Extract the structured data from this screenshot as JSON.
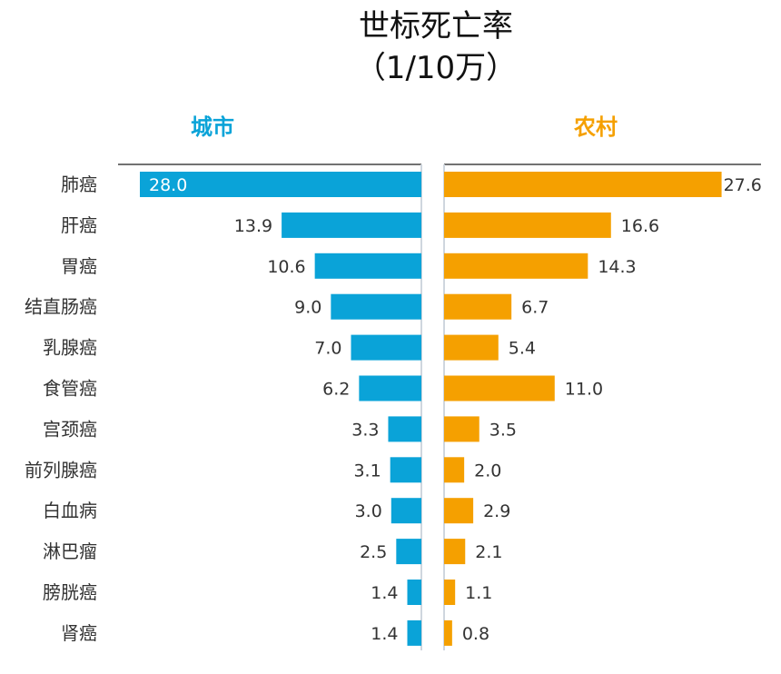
{
  "chart_data": {
    "type": "bar",
    "title_line1": "世标死亡率",
    "title_line2": "（1/10万）",
    "categories": [
      "肺癌",
      "肝癌",
      "胃癌",
      "结直肠癌",
      "乳腺癌",
      "食管癌",
      "宫颈癌",
      "前列腺癌",
      "白血病",
      "淋巴瘤",
      "膀胱癌",
      "肾癌"
    ],
    "series": [
      {
        "name": "城市",
        "color": "#0aa3d8",
        "values": [
          28.0,
          13.9,
          10.6,
          9.0,
          7.0,
          6.2,
          3.3,
          3.1,
          3.0,
          2.5,
          1.4,
          1.4
        ]
      },
      {
        "name": "农村",
        "color": "#f5a000",
        "values": [
          27.6,
          16.6,
          14.3,
          6.7,
          5.4,
          11.0,
          3.5,
          2.0,
          2.9,
          2.1,
          1.1,
          0.8
        ]
      }
    ],
    "orientation": "horizontal-butterfly",
    "grid": false,
    "decimals": 1
  }
}
